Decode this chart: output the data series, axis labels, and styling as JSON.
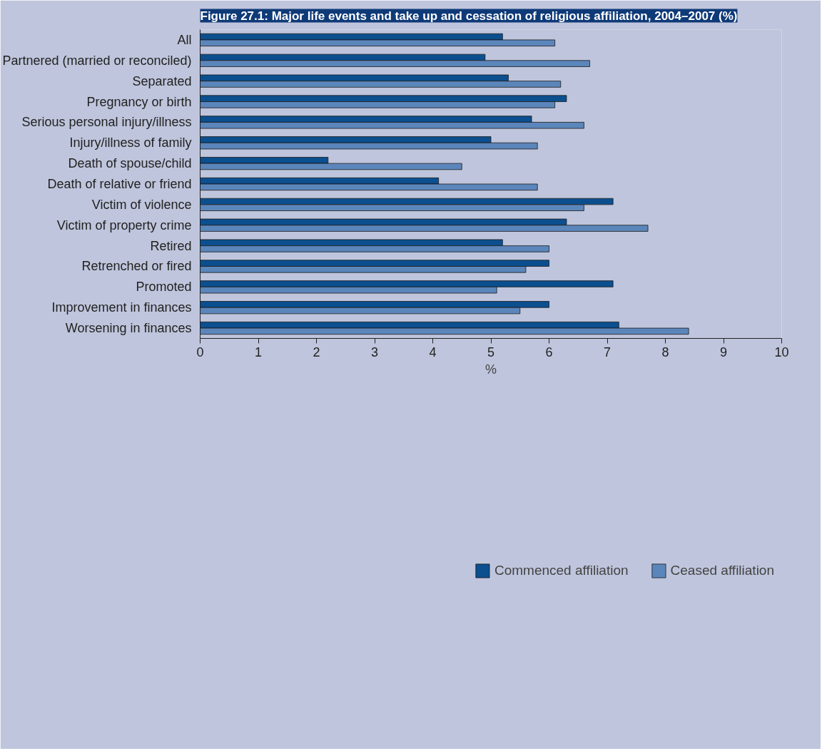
{
  "chart_data": {
    "type": "bar",
    "orientation": "horizontal",
    "title": "Figure 27.1: Major life events and take up and cessation of religious affiliation, 2004–2007 (%)",
    "categories": [
      "All",
      "Partnered (married or reconciled)",
      "Separated",
      "Pregnancy or birth",
      "Serious personal injury/illness",
      "Injury/illness of family",
      "Death of spouse/child",
      "Death of relative or friend",
      "Victim of violence",
      "Victim of property crime",
      "Retired",
      "Retrenched or fired",
      "Promoted",
      "Improvement in finances",
      "Worsening in finances"
    ],
    "series": [
      {
        "name": "Commenced affiliation",
        "color": "#0b4f8f",
        "values": [
          5.2,
          4.9,
          5.3,
          6.3,
          5.7,
          5.0,
          2.2,
          4.1,
          7.1,
          6.3,
          5.2,
          6.0,
          7.1,
          6.0,
          7.2
        ]
      },
      {
        "name": "Ceased affiliation",
        "color": "#5b86bb",
        "values": [
          6.1,
          6.7,
          6.2,
          6.1,
          6.6,
          5.8,
          4.5,
          5.8,
          6.6,
          7.7,
          6.0,
          5.6,
          5.1,
          5.5,
          8.4
        ]
      }
    ],
    "xlabel": "%",
    "xlim": [
      0,
      10
    ],
    "xticks": [
      0,
      1,
      2,
      3,
      4,
      5,
      6,
      7,
      8,
      9,
      10
    ],
    "grid": false,
    "legend": "bottom"
  }
}
